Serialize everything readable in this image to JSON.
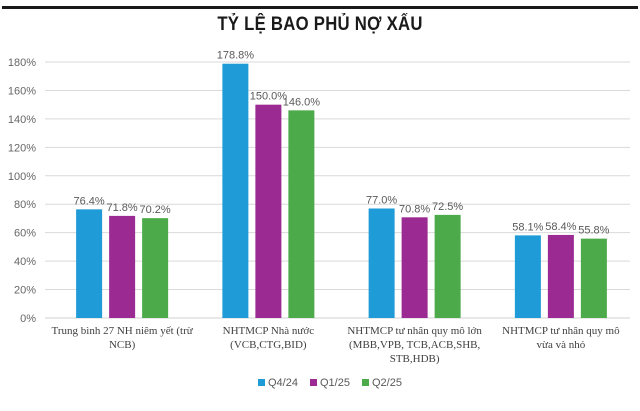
{
  "chart_data": {
    "type": "bar",
    "title": "TỶ LỆ BAO PHỦ NỢ XẤU",
    "xlabel": "",
    "ylabel": "",
    "ylim": [
      0,
      180
    ],
    "y_ticks": [
      "0%",
      "20%",
      "40%",
      "60%",
      "80%",
      "100%",
      "120%",
      "140%",
      "160%",
      "180%"
    ],
    "y_tick_values": [
      0,
      20,
      40,
      60,
      80,
      100,
      120,
      140,
      160,
      180
    ],
    "grid": true,
    "legend_position": "bottom",
    "categories": [
      [
        "Trung bình 27 NH niêm yết (trừ",
        "NCB)"
      ],
      [
        "NHTMCP Nhà nước",
        "(VCB,CTG,BID)"
      ],
      [
        "NHTMCP tư nhân quy mô lớn",
        "(MBB,VPB, TCB,ACB,SHB,",
        "STB,HDB)"
      ],
      [
        "NHTMCP tư nhân quy mô",
        "vừa và nhỏ"
      ]
    ],
    "series": [
      {
        "name": "Q4/24",
        "color": "#1f9bd7",
        "values": [
          76.4,
          178.8,
          77.0,
          58.1
        ],
        "labels": [
          "76.4%",
          "178.8%",
          "77.0%",
          "58.1%"
        ]
      },
      {
        "name": "Q1/25",
        "color": "#9b2a93",
        "values": [
          71.8,
          150.0,
          70.8,
          58.4
        ],
        "labels": [
          "71.8%",
          "150.0%",
          "70.8%",
          "58.4%"
        ]
      },
      {
        "name": "Q2/25",
        "color": "#4caa4a",
        "values": [
          70.2,
          146.0,
          72.5,
          55.8
        ],
        "labels": [
          "70.2%",
          "146.0%",
          "72.5%",
          "55.8%"
        ]
      }
    ]
  }
}
